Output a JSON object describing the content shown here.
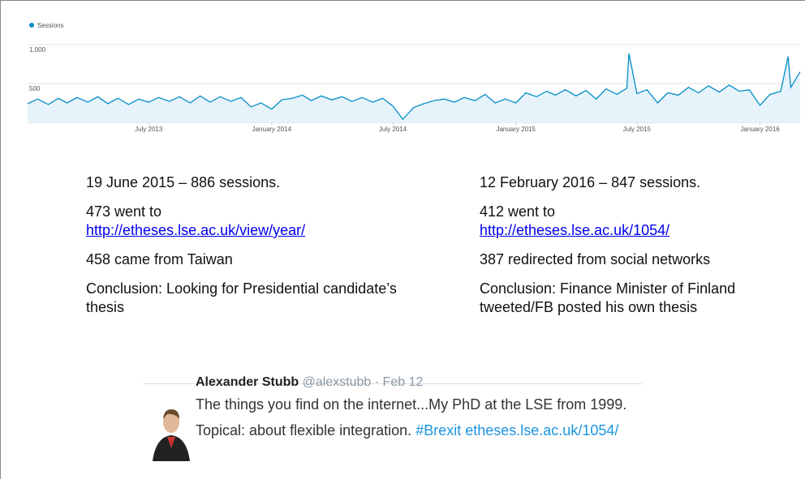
{
  "chart_data": {
    "type": "line",
    "series": [
      {
        "name": "Sessions",
        "color": "#058dc7",
        "values": [
          240,
          300,
          230,
          310,
          250,
          320,
          260,
          330,
          240,
          310,
          230,
          300,
          260,
          320,
          270,
          330,
          250,
          340,
          260,
          330,
          270,
          320,
          200,
          250,
          170,
          290,
          310,
          350,
          280,
          340,
          290,
          330,
          270,
          320,
          260,
          310,
          210,
          40,
          190,
          240,
          280,
          300,
          260,
          320,
          280,
          360,
          250,
          300,
          250,
          380,
          330,
          400,
          350,
          420,
          340,
          410,
          300,
          430,
          360,
          440,
          886,
          370,
          420,
          250,
          380,
          350,
          450,
          380,
          470,
          390,
          480,
          400,
          420,
          220,
          360,
          400,
          847,
          450,
          650
        ]
      }
    ],
    "x": [
      "2013-01-01",
      "2013-01-16",
      "2013-02-01",
      "2013-02-16",
      "2013-03-01",
      "2013-03-16",
      "2013-04-01",
      "2013-04-16",
      "2013-05-01",
      "2013-05-16",
      "2013-06-01",
      "2013-06-16",
      "2013-07-01",
      "2013-07-16",
      "2013-08-01",
      "2013-08-16",
      "2013-09-01",
      "2013-09-16",
      "2013-10-01",
      "2013-10-16",
      "2013-11-01",
      "2013-11-16",
      "2013-12-01",
      "2013-12-16",
      "2014-01-01",
      "2014-01-16",
      "2014-02-01",
      "2014-02-16",
      "2014-03-01",
      "2014-03-16",
      "2014-04-01",
      "2014-04-16",
      "2014-05-01",
      "2014-05-16",
      "2014-06-01",
      "2014-06-16",
      "2014-07-01",
      "2014-07-16",
      "2014-08-01",
      "2014-08-16",
      "2014-09-01",
      "2014-09-16",
      "2014-10-01",
      "2014-10-16",
      "2014-11-01",
      "2014-11-16",
      "2014-12-01",
      "2014-12-16",
      "2015-01-01",
      "2015-01-16",
      "2015-02-01",
      "2015-02-16",
      "2015-03-01",
      "2015-03-16",
      "2015-04-01",
      "2015-04-16",
      "2015-05-01",
      "2015-05-16",
      "2015-06-01",
      "2015-06-16",
      "2015-06-19",
      "2015-07-01",
      "2015-07-16",
      "2015-08-01",
      "2015-08-16",
      "2015-09-01",
      "2015-09-16",
      "2015-10-01",
      "2015-10-16",
      "2015-11-01",
      "2015-11-16",
      "2015-12-01",
      "2015-12-16",
      "2016-01-01",
      "2016-01-16",
      "2016-02-01",
      "2016-02-12",
      "2016-02-16",
      "2016-03-01"
    ],
    "xlim": [
      "2013-01-01",
      "2016-03-01"
    ],
    "xticks": [
      {
        "value": "2013-07-01",
        "label": "July 2013"
      },
      {
        "value": "2014-01-01",
        "label": "January 2014"
      },
      {
        "value": "2014-07-01",
        "label": "July 2014"
      },
      {
        "value": "2015-01-01",
        "label": "January 2015"
      },
      {
        "value": "2015-07-01",
        "label": "July 2015"
      },
      {
        "value": "2016-01-01",
        "label": "January 2016"
      }
    ],
    "ylim": [
      0,
      1000
    ],
    "yticks": [
      {
        "value": 1000,
        "label": "1,000"
      },
      500
    ],
    "grid": true
  },
  "left": {
    "heading": "19 June 2015 – 886 sessions.",
    "went": "473 went to",
    "link": "http://etheses.lse.ac.uk/view/year/",
    "origin": "458 came from Taiwan",
    "conclusion": "Conclusion: Looking for Presidential candidate’s thesis"
  },
  "right": {
    "heading": "12 February 2016 – 847 sessions.",
    "went": "412 went to",
    "link": "http://etheses.lse.ac.uk/1054/",
    "origin": "387 redirected from social networks",
    "conclusion": "Conclusion: Finance Minister of Finland tweeted/FB posted his own thesis"
  },
  "tweet": {
    "name": "Alexander Stubb",
    "handle": "@alexstubb · Feb 12",
    "line1": "The things you find on the internet...My PhD at the LSE from 1999.",
    "line2": "Topical: about flexible integration.",
    "hashtag": "#Brexit",
    "url": "etheses.lse.ac.uk/1054/"
  }
}
